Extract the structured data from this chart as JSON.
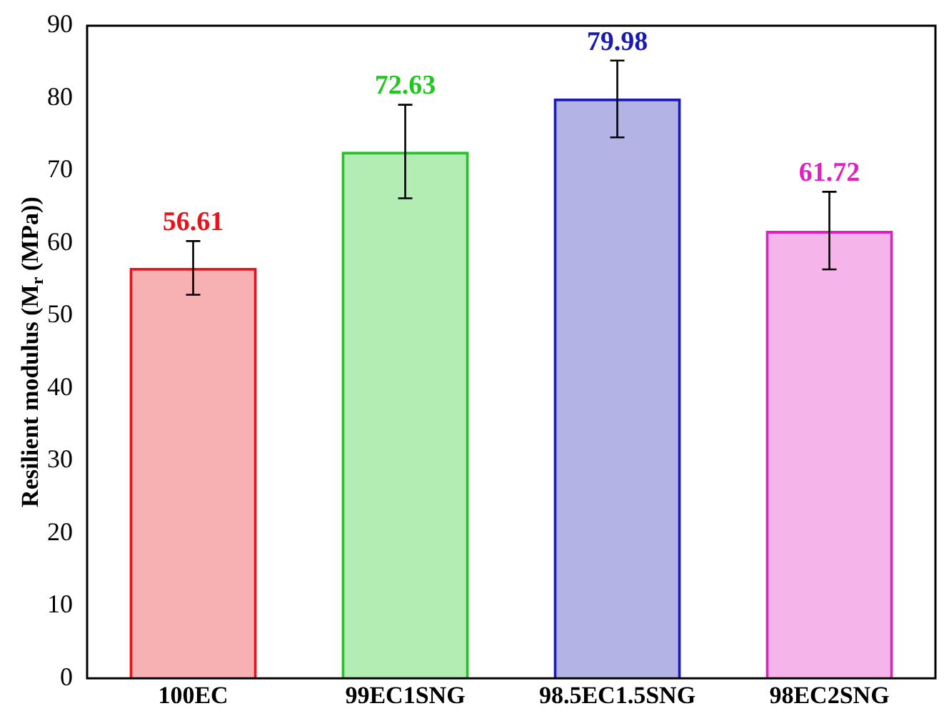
{
  "chart_data": {
    "type": "bar",
    "ylabel": "Resilient modulus (M$_{r}$ (MPa))",
    "categories": [
      "100EC",
      "99EC1SNG",
      "98.5EC1.5SNG",
      "98EC2SNG"
    ],
    "values": [
      56.61,
      72.63,
      79.98,
      61.72
    ],
    "colors": [
      "#e8141b",
      "#1ec81e",
      "#1a1ab4",
      "#e020c0"
    ],
    "errors": [
      [
        52.9,
        60.3
      ],
      [
        66.2,
        79.1
      ],
      [
        74.6,
        85.2
      ],
      [
        56.4,
        67.1
      ]
    ],
    "data_labels": true,
    "ylim": [
      0,
      90
    ],
    "yticks": [
      0,
      10,
      20,
      30,
      40,
      50,
      60,
      70,
      80,
      90
    ],
    "grid": false,
    "legend": false
  }
}
